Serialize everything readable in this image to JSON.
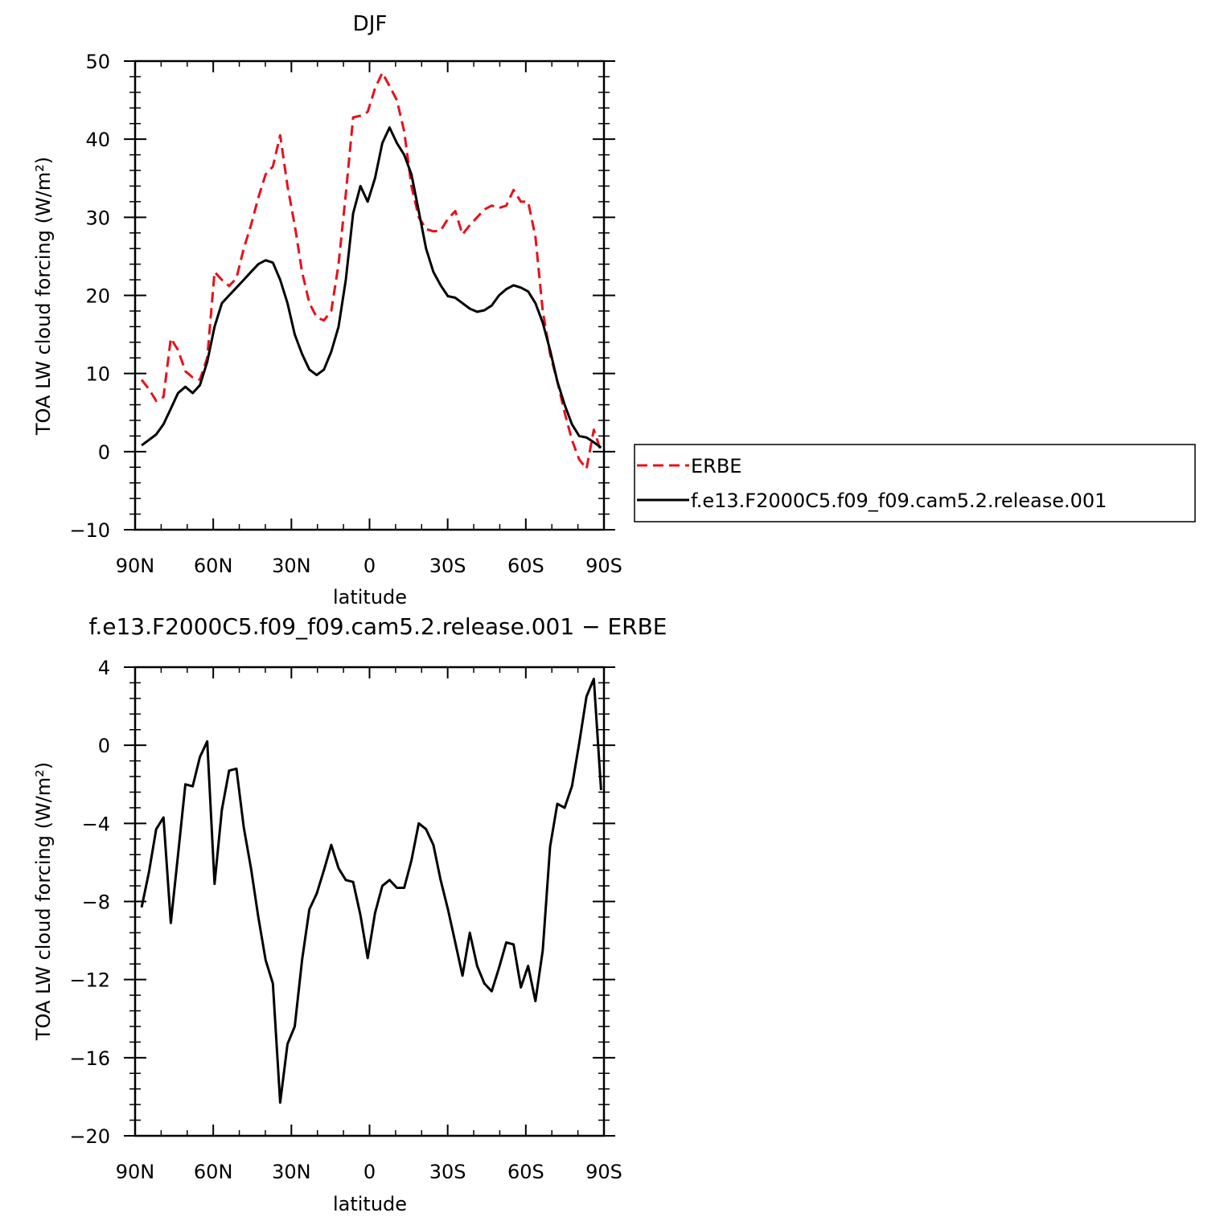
{
  "chart_data": [
    {
      "type": "line",
      "title": "DJF",
      "xlabel": "latitude",
      "ylabel": "TOA LW cloud forcing (W/m²)",
      "xlim": [
        90,
        -90
      ],
      "ylim": [
        -10,
        50
      ],
      "xticks": [
        {
          "value": 90,
          "label": "90N"
        },
        {
          "value": 60,
          "label": "60N"
        },
        {
          "value": 30,
          "label": "30N"
        },
        {
          "value": 0,
          "label": "0"
        },
        {
          "value": -30,
          "label": "30S"
        },
        {
          "value": -60,
          "label": "60S"
        },
        {
          "value": -90,
          "label": "90S"
        }
      ],
      "yticks": [
        {
          "value": -10,
          "label": "−10"
        },
        {
          "value": 0,
          "label": "0"
        },
        {
          "value": 10,
          "label": "10"
        },
        {
          "value": 20,
          "label": "20"
        },
        {
          "value": 30,
          "label": "30"
        },
        {
          "value": 40,
          "label": "40"
        },
        {
          "value": 50,
          "label": "50"
        }
      ],
      "legend": "outside-right",
      "x": [
        87.5,
        84.7,
        81.9,
        79.1,
        76.3,
        73.5,
        70.7,
        67.9,
        65.1,
        62.3,
        59.5,
        56.7,
        53.9,
        51.1,
        48.3,
        45.5,
        42.7,
        39.9,
        37.1,
        34.3,
        31.5,
        28.7,
        25.9,
        23.1,
        20.3,
        17.5,
        14.7,
        11.9,
        9.1,
        6.3,
        3.5,
        0.7,
        -2.1,
        -4.9,
        -7.7,
        -10.5,
        -13.3,
        -16.1,
        -18.9,
        -21.7,
        -24.5,
        -27.3,
        -30.1,
        -32.9,
        -35.7,
        -38.5,
        -41.3,
        -44.1,
        -46.9,
        -49.7,
        -52.5,
        -55.3,
        -58.1,
        -60.9,
        -63.7,
        -66.5,
        -69.3,
        -72.1,
        -74.9,
        -77.7,
        -80.5,
        -83.3,
        -86.1,
        -88.9
      ],
      "series": [
        {
          "name": "ERBE",
          "color": "#e8101a",
          "dash": "dashed",
          "values": [
            9.2,
            8.0,
            6.5,
            7.0,
            14.5,
            13.0,
            10.3,
            9.5,
            9.2,
            12.0,
            23.0,
            22.0,
            21.2,
            22.2,
            26.0,
            29.0,
            32.5,
            35.5,
            36.5,
            40.5,
            34.0,
            29.0,
            23.0,
            19.0,
            17.2,
            16.8,
            18.0,
            24.0,
            33.0,
            42.8,
            43.0,
            43.5,
            46.5,
            48.5,
            46.8,
            45.0,
            41.0,
            34.0,
            30.0,
            28.5,
            28.2,
            28.3,
            29.8,
            30.8,
            27.8,
            29.0,
            30.0,
            31.0,
            31.5,
            31.2,
            31.5,
            33.5,
            32.0,
            32.0,
            27.5,
            18.0,
            12.5,
            9.0,
            5.0,
            1.5,
            -1.0,
            -2.2,
            2.8,
            0
          ]
        },
        {
          "name": "f.e13.F2000C5.f09_f09.cam5.2.release.001",
          "color": "#000000",
          "dash": "solid",
          "values": [
            0.8,
            1.5,
            2.2,
            3.5,
            5.5,
            7.5,
            8.3,
            7.5,
            8.5,
            11.5,
            16.0,
            19.0,
            20.0,
            21.0,
            22.0,
            23.0,
            24.0,
            24.5,
            24.2,
            22.0,
            19.0,
            15.0,
            12.5,
            10.5,
            9.8,
            10.5,
            12.8,
            16.0,
            22.0,
            30.5,
            34.0,
            32.0,
            35.0,
            39.5,
            41.5,
            39.5,
            38.0,
            35.5,
            30.8,
            26.0,
            23.0,
            21.3,
            19.9,
            19.7,
            19.0,
            18.3,
            17.9,
            18.1,
            18.7,
            20.0,
            20.8,
            21.3,
            21.0,
            20.5,
            19.0,
            16.5,
            13.0,
            9.0,
            6.0,
            3.5,
            2.0,
            1.8,
            1.2,
            0.5
          ]
        }
      ]
    },
    {
      "type": "line",
      "title": "f.e13.F2000C5.f09_f09.cam5.2.release.001  −  ERBE",
      "xlabel": "latitude",
      "ylabel": "TOA LW cloud forcing (W/m²)",
      "xlim": [
        90,
        -90
      ],
      "ylim": [
        -20,
        4
      ],
      "xticks": [
        {
          "value": 90,
          "label": "90N"
        },
        {
          "value": 60,
          "label": "60N"
        },
        {
          "value": 30,
          "label": "30N"
        },
        {
          "value": 0,
          "label": "0"
        },
        {
          "value": -30,
          "label": "30S"
        },
        {
          "value": -60,
          "label": "60S"
        },
        {
          "value": -90,
          "label": "90S"
        }
      ],
      "yticks": [
        {
          "value": -20,
          "label": "−20"
        },
        {
          "value": -16,
          "label": "−16"
        },
        {
          "value": -12,
          "label": "−12"
        },
        {
          "value": -8,
          "label": "−8"
        },
        {
          "value": -4,
          "label": "−4"
        },
        {
          "value": 0,
          "label": "0"
        },
        {
          "value": 4,
          "label": "4"
        }
      ],
      "x": [
        87.5,
        84.7,
        81.9,
        79.1,
        76.3,
        73.5,
        70.7,
        67.9,
        65.1,
        62.3,
        59.5,
        56.7,
        53.9,
        51.1,
        48.3,
        45.5,
        42.7,
        39.9,
        37.1,
        34.3,
        31.5,
        28.7,
        25.9,
        23.1,
        20.3,
        17.5,
        14.7,
        11.9,
        9.1,
        6.3,
        3.5,
        0.7,
        -2.1,
        -4.9,
        -7.7,
        -10.5,
        -13.3,
        -16.1,
        -18.9,
        -21.7,
        -24.5,
        -27.3,
        -30.1,
        -32.9,
        -35.7,
        -38.5,
        -41.3,
        -44.1,
        -46.9,
        -49.7,
        -52.5,
        -55.3,
        -58.1,
        -60.9,
        -63.7,
        -66.5,
        -69.3,
        -72.1,
        -74.9,
        -77.7,
        -80.5,
        -83.3,
        -86.1,
        -88.9
      ],
      "series": [
        {
          "name": "",
          "color": "#000000",
          "dash": "solid",
          "values": [
            -8.3,
            -6.5,
            -4.3,
            -3.7,
            -9.1,
            -5.6,
            -2.0,
            -2.1,
            -0.6,
            0.2,
            -7.1,
            -3.3,
            -1.3,
            -1.2,
            -4.2,
            -6.3,
            -8.8,
            -11.0,
            -12.2,
            -18.3,
            -15.3,
            -14.4,
            -11.0,
            -8.4,
            -7.6,
            -6.4,
            -5.1,
            -6.3,
            -6.9,
            -7.0,
            -8.7,
            -10.9,
            -8.6,
            -7.2,
            -6.9,
            -7.3,
            -7.3,
            -5.9,
            -4.0,
            -4.3,
            -5.1,
            -6.9,
            -8.4,
            -10.1,
            -11.8,
            -9.6,
            -11.3,
            -12.2,
            -12.6,
            -11.4,
            -10.1,
            -10.2,
            -12.4,
            -11.3,
            -13.1,
            -10.5,
            -5.2,
            -3.0,
            -3.2,
            -2.1,
            0.1,
            2.5,
            3.4,
            -2.3
          ]
        }
      ]
    }
  ]
}
